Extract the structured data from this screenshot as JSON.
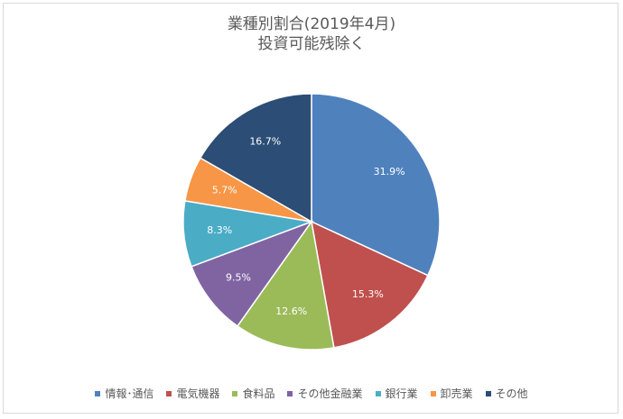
{
  "chart_data": {
    "type": "pie",
    "title": "業種別割合(2019年4月)",
    "subtitle": "投資可能残除く",
    "slices": [
      {
        "label": "情報･通信",
        "value": 31.9,
        "data_label": "31.9%",
        "color": "#4f81bd"
      },
      {
        "label": "電気機器",
        "value": 15.3,
        "data_label": "15.3%",
        "color": "#c0504d"
      },
      {
        "label": "食料品",
        "value": 12.6,
        "data_label": "12.6%",
        "color": "#9bbb59"
      },
      {
        "label": "その他金融業",
        "value": 9.5,
        "data_label": "9.5%",
        "color": "#8064a2"
      },
      {
        "label": "銀行業",
        "value": 8.3,
        "data_label": "8.3%",
        "color": "#4bacc6"
      },
      {
        "label": "卸売業",
        "value": 5.7,
        "data_label": "5.7%",
        "color": "#f79646"
      },
      {
        "label": "その他",
        "value": 16.7,
        "data_label": "16.7%",
        "color": "#2c4d75"
      }
    ],
    "legend_position": "bottom"
  }
}
